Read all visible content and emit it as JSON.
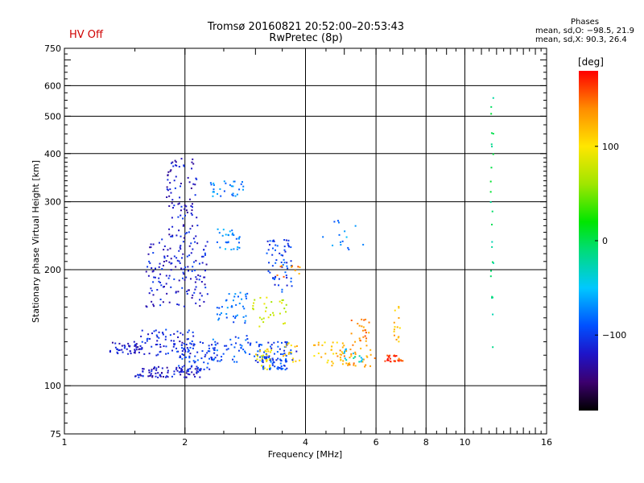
{
  "header": {
    "hv_status": "HV Off",
    "title_line1": "Tromsø 20160821 20:52:00–20:53:43",
    "title_line2": "RwPretec (8p)",
    "phase_title": "Phases",
    "phase_o": "mean, sd,O: −98.5, 21.9",
    "phase_x": "mean, sd,X:  90.3, 26.4"
  },
  "colorbar": {
    "label": "[deg]",
    "range": [
      -180,
      180
    ],
    "ticks": [
      100,
      0,
      -100
    ],
    "tick_labels": [
      "100",
      "0",
      "−100"
    ]
  },
  "chart_data": {
    "type": "scatter",
    "xlabel": "Frequency [MHz]",
    "ylabel": "Stationary phase Virtual Height [km]",
    "xscale": "log",
    "yscale": "log",
    "xlim": [
      1,
      16
    ],
    "ylim": [
      75,
      750
    ],
    "xticks": [
      1,
      2,
      4,
      6,
      8,
      10,
      16
    ],
    "xtick_labels": [
      "1",
      "2",
      "4",
      "6",
      "8",
      "10",
      "16"
    ],
    "yticks": [
      75,
      100,
      200,
      300,
      400,
      500,
      600,
      750
    ],
    "ytick_labels": [
      "75",
      "100",
      "200",
      "300",
      "400",
      "500",
      "600",
      "750"
    ],
    "grid_x": [
      2,
      4,
      6,
      8,
      10
    ],
    "grid_y": [
      100,
      200,
      300,
      400,
      500,
      600
    ],
    "color_by": "phase [deg]",
    "clusters": [
      {
        "fmin": 1.3,
        "fmax": 1.55,
        "hmin": 120,
        "hmax": 130,
        "phase": -120,
        "n": 45
      },
      {
        "fmin": 1.5,
        "fmax": 2.2,
        "hmin": 105,
        "hmax": 112,
        "phase": -120,
        "n": 90
      },
      {
        "fmin": 1.55,
        "fmax": 2.1,
        "hmin": 118,
        "hmax": 140,
        "phase": -110,
        "n": 80
      },
      {
        "fmin": 1.6,
        "fmax": 2.3,
        "hmin": 160,
        "hmax": 240,
        "phase": -115,
        "n": 150
      },
      {
        "fmin": 1.8,
        "fmax": 2.15,
        "hmin": 240,
        "hmax": 390,
        "phase": -120,
        "n": 90
      },
      {
        "fmin": 1.9,
        "fmax": 2.5,
        "hmin": 110,
        "hmax": 130,
        "phase": -100,
        "n": 70
      },
      {
        "fmin": 2.3,
        "fmax": 2.8,
        "hmin": 310,
        "hmax": 340,
        "phase": -75,
        "n": 30
      },
      {
        "fmin": 2.4,
        "fmax": 2.75,
        "hmin": 225,
        "hmax": 255,
        "phase": -70,
        "n": 30
      },
      {
        "fmin": 2.4,
        "fmax": 2.9,
        "hmin": 145,
        "hmax": 175,
        "phase": -80,
        "n": 40
      },
      {
        "fmin": 2.3,
        "fmax": 3.0,
        "hmin": 115,
        "hmax": 135,
        "phase": -90,
        "n": 40
      },
      {
        "fmin": 3.0,
        "fmax": 3.8,
        "hmin": 115,
        "hmax": 130,
        "phase": -100,
        "n": 60
      },
      {
        "fmin": 3.1,
        "fmax": 3.6,
        "hmin": 110,
        "hmax": 118,
        "phase": -95,
        "n": 40
      },
      {
        "fmin": 3.2,
        "fmax": 3.7,
        "hmin": 175,
        "hmax": 240,
        "phase": -100,
        "n": 60
      },
      {
        "fmin": 2.9,
        "fmax": 3.6,
        "hmin": 140,
        "hmax": 170,
        "phase": 80,
        "n": 30
      },
      {
        "fmin": 3.0,
        "fmax": 3.3,
        "hmin": 110,
        "hmax": 125,
        "phase": 95,
        "n": 25
      },
      {
        "fmin": 3.5,
        "fmax": 3.9,
        "hmin": 115,
        "hmax": 130,
        "phase": 110,
        "n": 15
      },
      {
        "fmin": 3.4,
        "fmax": 3.9,
        "hmin": 190,
        "hmax": 205,
        "phase": 140,
        "n": 10
      },
      {
        "fmin": 4.1,
        "fmax": 5.0,
        "hmin": 112,
        "hmax": 130,
        "phase": 115,
        "n": 30
      },
      {
        "fmin": 4.4,
        "fmax": 5.6,
        "hmin": 225,
        "hmax": 270,
        "phase": -70,
        "n": 15
      },
      {
        "fmin": 4.7,
        "fmax": 6.0,
        "hmin": 112,
        "hmax": 125,
        "phase": 130,
        "n": 35
      },
      {
        "fmin": 5.2,
        "fmax": 5.8,
        "hmin": 125,
        "hmax": 150,
        "phase": 140,
        "n": 25
      },
      {
        "fmin": 5.0,
        "fmax": 5.6,
        "hmin": 115,
        "hmax": 125,
        "phase": -40,
        "n": 15
      },
      {
        "fmin": 6.3,
        "fmax": 7.0,
        "hmin": 115,
        "hmax": 120,
        "phase": 160,
        "n": 25
      },
      {
        "fmin": 6.6,
        "fmax": 7.0,
        "hmin": 130,
        "hmax": 165,
        "phase": 120,
        "n": 15
      },
      {
        "fmin": 11.6,
        "fmax": 11.8,
        "hmin": 110,
        "hmax": 560,
        "phase": -10,
        "n": 25
      }
    ]
  }
}
